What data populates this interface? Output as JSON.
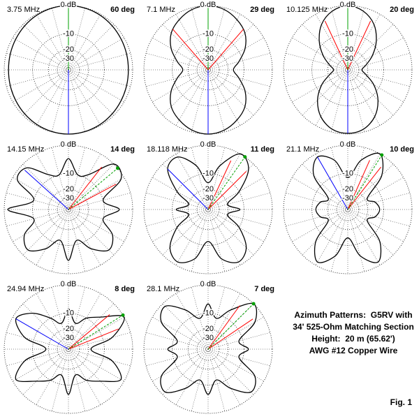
{
  "chart_data": [
    {
      "type": "polar",
      "title": "3.75 MHz",
      "subtitle": "60 deg",
      "x": [
        0,
        15,
        30,
        45,
        60,
        75,
        90,
        105,
        120,
        135,
        150,
        165,
        180,
        195,
        210,
        225,
        240,
        255,
        270,
        285,
        300,
        315,
        330,
        345
      ],
      "values": [
        0,
        -0.1,
        -0.3,
        -0.6,
        -0.9,
        -1.1,
        -1.2,
        -1.1,
        -0.9,
        -0.6,
        -0.3,
        -0.1,
        0,
        -0.1,
        -0.3,
        -0.6,
        -0.9,
        -1.1,
        -1.2,
        -1.1,
        -0.9,
        -0.6,
        -0.3,
        -0.1
      ],
      "rlim": [
        -60,
        0
      ],
      "rticks": [
        {
          "value": 0,
          "label": "0 dB"
        },
        -10,
        -20,
        -30
      ],
      "scale": "arrl-log",
      "max_azimuth": 0,
      "blue_azimuth": 180,
      "color": "#000000"
    },
    {
      "type": "polar",
      "title": "7.1 MHz",
      "subtitle": "29 deg",
      "x": [
        0,
        15,
        30,
        45,
        60,
        75,
        90,
        105,
        120,
        135,
        150,
        165,
        180,
        195,
        210,
        225,
        240,
        255,
        270,
        285,
        300,
        315,
        330,
        345
      ],
      "values": [
        0,
        -0.5,
        -1.8,
        -3.6,
        -7,
        -12,
        -16,
        -12,
        -7,
        -3.6,
        -1.8,
        -0.5,
        0,
        -0.5,
        -1.8,
        -3.6,
        -7,
        -12,
        -16,
        -12,
        -7,
        -3.6,
        -1.8,
        -0.5
      ],
      "rlim": [
        -60,
        0
      ],
      "rticks": [
        {
          "value": 0,
          "label": "0 dB"
        },
        -10,
        -20,
        -30
      ],
      "scale": "arrl-log",
      "max_azimuth": 0,
      "half_power_azimuths": [
        319,
        41
      ],
      "blue_azimuth": 180,
      "color": "#000000"
    },
    {
      "type": "polar",
      "title": "10.125 MHz",
      "subtitle": "20 deg",
      "x": [
        0,
        15,
        30,
        45,
        60,
        75,
        90,
        105,
        120,
        135,
        150,
        165,
        180,
        195,
        210,
        225,
        240,
        255,
        270,
        285,
        300,
        315,
        330,
        345
      ],
      "values": [
        0,
        -1,
        -3.5,
        -8,
        -14,
        -21,
        -26,
        -21,
        -13,
        -7,
        -3,
        -0.8,
        -0.2,
        -0.8,
        -3,
        -7,
        -13,
        -21,
        -26,
        -21,
        -14,
        -8,
        -3.5,
        -1
      ],
      "rlim": [
        -60,
        0
      ],
      "rticks": [
        {
          "value": 0,
          "label": "0 dB"
        },
        -10,
        -20,
        -30
      ],
      "scale": "arrl-log",
      "max_azimuth": 0,
      "half_power_azimuths": [
        335,
        25
      ],
      "blue_azimuth": 180,
      "color": "#000000"
    },
    {
      "type": "polar",
      "title": "14.15 MHz",
      "subtitle": "14 deg",
      "x": [
        0,
        15,
        30,
        45,
        60,
        75,
        90,
        105,
        120,
        135,
        150,
        165,
        180,
        195,
        210,
        225,
        240,
        255,
        270,
        285,
        300,
        315,
        330,
        345
      ],
      "values": [
        -4,
        -10,
        -8,
        0,
        -1,
        -10,
        -4,
        -10,
        -4,
        -2,
        -6,
        -12,
        -4,
        -12,
        -6,
        -2,
        -4,
        -10,
        -1,
        -10,
        -1.5,
        -1.5,
        -8,
        -10
      ],
      "rlim": [
        -60,
        0
      ],
      "rticks": [
        {
          "value": 0,
          "label": "0 dB"
        },
        -10,
        -20,
        -30
      ],
      "scale": "arrl-log",
      "max_azimuth": 50,
      "half_power_azimuths": [
        38,
        62
      ],
      "blue_azimuth": 312,
      "color": "#000000"
    },
    {
      "type": "polar",
      "title": "18.118 MHz",
      "subtitle": "11 deg",
      "x": [
        0,
        15,
        30,
        45,
        60,
        75,
        90,
        105,
        120,
        135,
        150,
        165,
        180,
        195,
        210,
        225,
        240,
        255,
        270,
        285,
        300,
        315,
        330,
        345
      ],
      "values": [
        -15,
        -6,
        0,
        -2,
        -10,
        -20,
        -12,
        -20,
        -10,
        -3,
        -1,
        -4,
        -12,
        -4,
        -1,
        -3,
        -10,
        -20,
        -12,
        -20,
        -10,
        -2,
        -1,
        -6
      ],
      "rlim": [
        -60,
        0
      ],
      "rticks": [
        {
          "value": 0,
          "label": "0 dB"
        },
        -10,
        -20,
        -30
      ],
      "scale": "arrl-log",
      "max_azimuth": 35,
      "half_power_azimuths": [
        25,
        45
      ],
      "blue_azimuth": 315,
      "color": "#000000"
    },
    {
      "type": "polar",
      "title": "21.1 MHz",
      "subtitle": "10 deg",
      "x": [
        0,
        15,
        30,
        45,
        60,
        75,
        90,
        105,
        120,
        135,
        150,
        165,
        180,
        195,
        210,
        225,
        240,
        255,
        270,
        285,
        300,
        315,
        330,
        345
      ],
      "values": [
        -12,
        -4,
        0,
        -5,
        -18,
        -14,
        -12,
        -14,
        -18,
        -6,
        -1,
        -5,
        -14,
        -5,
        -1,
        -6,
        -18,
        -14,
        -12,
        -14,
        -18,
        -5,
        -1,
        -4
      ],
      "rlim": [
        -60,
        0
      ],
      "rticks": [
        {
          "value": 0,
          "label": "0 dB"
        },
        -10,
        -20,
        -30
      ],
      "scale": "arrl-log",
      "max_azimuth": 32,
      "half_power_azimuths": [
        24,
        38
      ],
      "blue_azimuth": 330,
      "color": "#000000"
    },
    {
      "type": "polar",
      "title": "24.94 MHz",
      "subtitle": "8 deg",
      "x": [
        0,
        15,
        30,
        45,
        60,
        75,
        90,
        105,
        120,
        135,
        150,
        165,
        180,
        195,
        210,
        225,
        240,
        255,
        270,
        285,
        300,
        315,
        330,
        345
      ],
      "values": [
        -8,
        -15,
        -10,
        -6,
        0,
        -6,
        -18,
        -6,
        -1,
        -6,
        -10,
        -15,
        -6,
        -15,
        -10,
        -6,
        -1,
        -6,
        -18,
        -6,
        -1,
        -4,
        -10,
        -15
      ],
      "rlim": [
        -60,
        0
      ],
      "rticks": [
        {
          "value": 0,
          "label": "0 dB"
        },
        -10,
        -20,
        -30
      ],
      "scale": "arrl-log",
      "max_azimuth": 58,
      "half_power_azimuths": [
        50,
        68
      ],
      "blue_azimuth": 300,
      "color": "#000000"
    },
    {
      "type": "polar",
      "title": "28.1 MHz",
      "subtitle": "7 deg",
      "x": [
        0,
        15,
        30,
        45,
        60,
        75,
        90,
        105,
        120,
        135,
        150,
        165,
        180,
        195,
        210,
        225,
        240,
        255,
        270,
        285,
        300,
        315,
        330,
        345
      ],
      "values": [
        -6,
        -12,
        -6,
        0,
        -3,
        -12,
        -8,
        -12,
        -3,
        -1,
        -6,
        -12,
        -6,
        -12,
        -6,
        -1,
        -3,
        -12,
        -8,
        -12,
        -3,
        -1,
        -6,
        -12
      ],
      "rlim": [
        -60,
        0
      ],
      "rticks": [
        {
          "value": 0,
          "label": "0 dB"
        },
        -10,
        -20,
        -30
      ],
      "scale": "arrl-log",
      "max_azimuth": 45,
      "half_power_azimuths": [
        36,
        56
      ],
      "color": "#000000"
    }
  ],
  "caption": {
    "lines": [
      "Azimuth Patterns:  G5RV with",
      "34' 525-Ohm Matching Section",
      "Height:  20 m (65.62')",
      "AWG #12 Copper Wire"
    ],
    "figure": "Fig. 1"
  },
  "marker_colors": {
    "max": "#00a000",
    "half_power": "#ff0000",
    "blue": "#0000ff"
  }
}
